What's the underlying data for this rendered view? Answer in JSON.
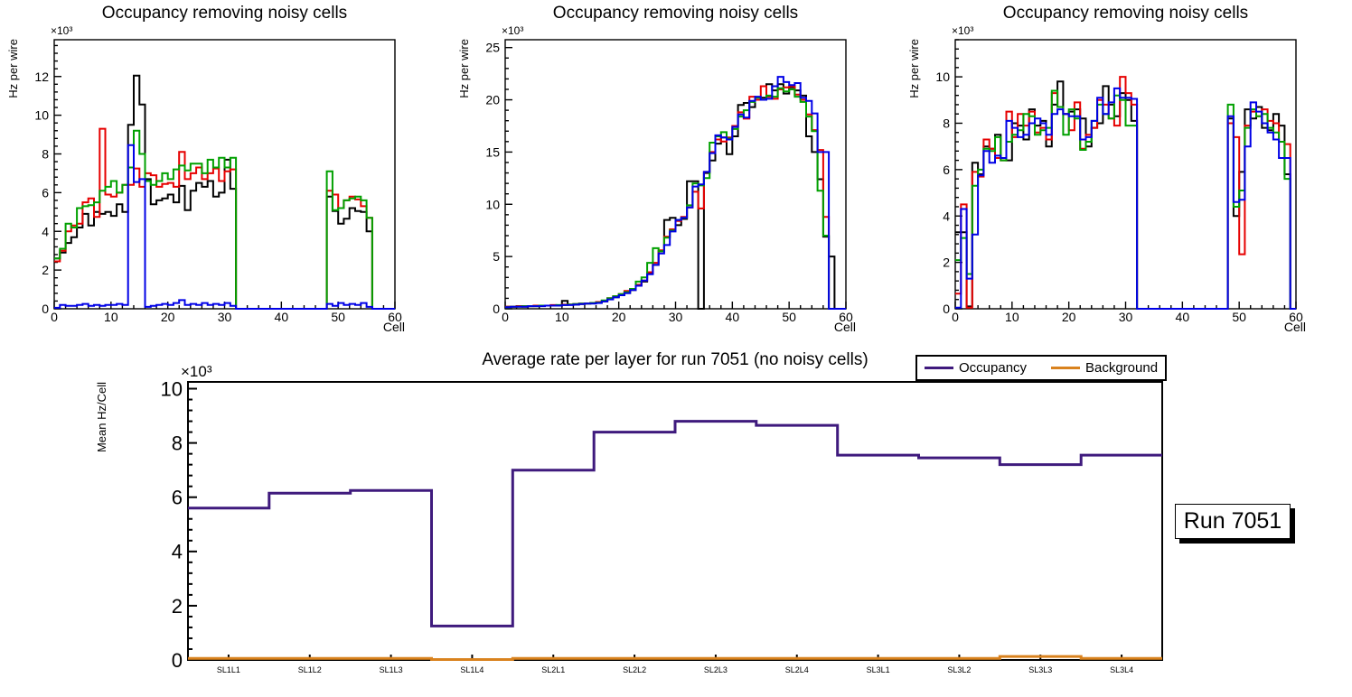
{
  "chart_data": [
    {
      "type": "bar",
      "render": "histogram-step-outline",
      "title": "Occupancy removing noisy cells",
      "xlabel": "Cell",
      "ylabel": "Hz per wire",
      "y_multiplier_label": "×10³",
      "xlim": [
        0,
        60
      ],
      "ylim": [
        0,
        13.9
      ],
      "xticks": [
        0,
        10,
        20,
        30,
        40,
        50,
        60
      ],
      "x_minor_step": 2,
      "yticks": [
        0,
        2,
        4,
        6,
        8,
        10,
        12
      ],
      "y_minor_step": 0.4,
      "grid": false,
      "series": [
        {
          "name": "black",
          "color": "#000000",
          "values": [
            2.6,
            2.9,
            3.4,
            3.7,
            4.2,
            4.9,
            4.3,
            5.0,
            4.9,
            5.0,
            4.8,
            5.4,
            5.0,
            9.5,
            12.05,
            10.55,
            6.7,
            5.4,
            5.6,
            5.7,
            5.9,
            5.5,
            6.35,
            5.1,
            6.1,
            6.5,
            6.3,
            6.6,
            5.8,
            6.0,
            7.7,
            6.2,
            0,
            0,
            0,
            0,
            0,
            0,
            0,
            0,
            0,
            0,
            0,
            0,
            0,
            0,
            0,
            0,
            5.8,
            5.05,
            4.4,
            4.65,
            5.2,
            5.05,
            5.0,
            4.0,
            0,
            0,
            0,
            0
          ]
        },
        {
          "name": "red",
          "color": "#e60000",
          "values": [
            2.45,
            3.0,
            4.0,
            4.3,
            4.4,
            5.5,
            5.7,
            4.75,
            9.3,
            5.9,
            5.8,
            6.0,
            6.4,
            6.4,
            7.25,
            6.3,
            7.0,
            6.9,
            6.3,
            6.45,
            6.5,
            6.3,
            8.1,
            6.7,
            7.0,
            7.3,
            6.7,
            7.0,
            7.25,
            6.6,
            7.1,
            7.2,
            0,
            0,
            0,
            0,
            0,
            0,
            0,
            0,
            0,
            0,
            0,
            0,
            0,
            0,
            0,
            0,
            6.1,
            5.9,
            5.2,
            5.6,
            5.8,
            5.65,
            5.3,
            4.7,
            0,
            0,
            0,
            0
          ]
        },
        {
          "name": "green",
          "color": "#00a000",
          "values": [
            2.6,
            3.1,
            4.4,
            4.2,
            5.2,
            5.3,
            5.35,
            5.5,
            6.1,
            6.3,
            6.6,
            6.0,
            6.4,
            7.3,
            9.2,
            8.0,
            6.6,
            6.4,
            6.6,
            7.0,
            6.7,
            7.2,
            7.4,
            7.15,
            7.5,
            7.5,
            7.0,
            7.7,
            7.3,
            7.8,
            7.3,
            7.8,
            0,
            0,
            0,
            0,
            0,
            0,
            0,
            0,
            0,
            0,
            0,
            0,
            0,
            0,
            0,
            0,
            7.1,
            5.1,
            5.2,
            5.6,
            5.7,
            5.8,
            5.6,
            4.7,
            0,
            0,
            0,
            0
          ]
        },
        {
          "name": "blue",
          "color": "#0000e6",
          "values": [
            0.05,
            0.2,
            0.15,
            0.15,
            0.2,
            0.25,
            0.15,
            0.2,
            0.15,
            0.2,
            0.2,
            0.25,
            0.2,
            8.45,
            6.55,
            6.7,
            0.1,
            0.15,
            0.2,
            0.25,
            0.2,
            0.3,
            0.45,
            0.2,
            0.25,
            0.2,
            0.3,
            0.2,
            0.25,
            0.2,
            0.3,
            0.15,
            0,
            0,
            0,
            0,
            0,
            0,
            0,
            0,
            0,
            0,
            0,
            0,
            0,
            0,
            0,
            0,
            0.25,
            0.15,
            0.3,
            0.2,
            0.25,
            0.2,
            0.3,
            0.1,
            0,
            0,
            0,
            0
          ]
        }
      ]
    },
    {
      "type": "bar",
      "render": "histogram-step-outline",
      "title": "Occupancy removing noisy cells",
      "xlabel": "Cell",
      "ylabel": "Hz per wire",
      "y_multiplier_label": "×10³",
      "xlim": [
        0,
        60
      ],
      "ylim": [
        0,
        25.75
      ],
      "xticks": [
        0,
        10,
        20,
        30,
        40,
        50,
        60
      ],
      "x_minor_step": 2,
      "yticks": [
        0,
        5,
        10,
        15,
        20,
        25
      ],
      "y_minor_step": 1,
      "grid": false,
      "series": [
        {
          "name": "black",
          "color": "#000000",
          "values": [
            0.2,
            0.2,
            0.25,
            0.2,
            0.25,
            0.25,
            0.3,
            0.3,
            0.3,
            0.3,
            0.75,
            0.4,
            0.4,
            0.45,
            0.5,
            0.55,
            0.6,
            0.7,
            1.0,
            1.1,
            1.3,
            1.5,
            1.8,
            2.2,
            2.6,
            3.4,
            4.2,
            5.5,
            8.5,
            8.7,
            8.0,
            8.6,
            12.2,
            12.2,
            0,
            13.0,
            14.2,
            15.8,
            16.4,
            14.8,
            16.5,
            19.5,
            19.7,
            19.3,
            20.0,
            20.2,
            21.5,
            20.9,
            21.5,
            20.6,
            21.2,
            20.9,
            20.4,
            16.5,
            15.0,
            12.4,
            6.9,
            5.0,
            0,
            0
          ]
        },
        {
          "name": "red",
          "color": "#e60000",
          "values": [
            0.2,
            0.2,
            0.25,
            0.25,
            0.25,
            0.3,
            0.3,
            0.3,
            0.35,
            0.3,
            0.4,
            0.4,
            0.45,
            0.5,
            0.5,
            0.55,
            0.65,
            0.75,
            1.0,
            1.2,
            1.4,
            1.7,
            1.9,
            2.3,
            2.7,
            3.5,
            4.4,
            5.6,
            6.9,
            7.6,
            8.4,
            8.8,
            9.7,
            11.2,
            9.6,
            13.1,
            15.0,
            16.2,
            16.0,
            16.4,
            17.5,
            18.8,
            18.2,
            20.3,
            20.0,
            21.3,
            20.3,
            20.1,
            21.0,
            21.2,
            21.3,
            20.5,
            20.0,
            18.6,
            17.1,
            15.2,
            8.8,
            0,
            0,
            0
          ]
        },
        {
          "name": "green",
          "color": "#00a000",
          "values": [
            0.15,
            0.2,
            0.2,
            0.25,
            0.25,
            0.25,
            0.3,
            0.3,
            0.3,
            0.35,
            0.35,
            0.4,
            0.45,
            0.5,
            0.5,
            0.55,
            0.6,
            0.8,
            1.0,
            1.2,
            1.4,
            1.6,
            1.9,
            2.6,
            3.0,
            4.4,
            5.8,
            5.5,
            6.8,
            7.5,
            8.5,
            8.7,
            9.9,
            12.0,
            11.8,
            12.5,
            15.9,
            16.5,
            16.9,
            16.3,
            17.2,
            18.4,
            19.0,
            19.8,
            20.2,
            20.0,
            20.4,
            20.3,
            21.1,
            20.8,
            21.0,
            20.3,
            19.8,
            18.4,
            17.0,
            11.3,
            7.0,
            0,
            0,
            0
          ]
        },
        {
          "name": "blue",
          "color": "#0000e6",
          "values": [
            0.15,
            0.2,
            0.2,
            0.2,
            0.25,
            0.25,
            0.25,
            0.3,
            0.3,
            0.3,
            0.35,
            0.35,
            0.4,
            0.45,
            0.5,
            0.5,
            0.55,
            0.7,
            0.9,
            1.1,
            1.3,
            1.5,
            1.8,
            2.2,
            2.7,
            3.3,
            4.2,
            5.3,
            6.1,
            7.4,
            8.5,
            8.7,
            9.7,
            11.7,
            11.9,
            13.1,
            14.9,
            16.6,
            16.4,
            16.2,
            17.4,
            18.6,
            18.3,
            19.9,
            20.3,
            20.0,
            20.1,
            21.3,
            22.2,
            21.7,
            21.4,
            21.6,
            20.2,
            19.9,
            18.7,
            15.0,
            15.0,
            0,
            0,
            0
          ]
        }
      ]
    },
    {
      "type": "bar",
      "render": "histogram-step-outline",
      "title": "Occupancy removing noisy cells",
      "xlabel": "Cell",
      "ylabel": "Hz per wire",
      "y_multiplier_label": "×10³",
      "xlim": [
        0,
        60
      ],
      "ylim": [
        0,
        11.6
      ],
      "xticks": [
        0,
        10,
        20,
        30,
        40,
        50,
        60
      ],
      "x_minor_step": 2,
      "yticks": [
        0,
        2,
        4,
        6,
        8,
        10
      ],
      "y_minor_step": 0.4,
      "grid": false,
      "series": [
        {
          "name": "black",
          "color": "#000000",
          "values": [
            3.3,
            3.3,
            0.1,
            6.3,
            5.8,
            7.0,
            6.9,
            7.5,
            6.5,
            6.4,
            8.0,
            7.9,
            7.3,
            8.6,
            7.9,
            8.1,
            7.0,
            8.8,
            9.8,
            8.4,
            8.5,
            8.6,
            8.2,
            7.0,
            7.8,
            8.0,
            9.6,
            8.8,
            8.3,
            9.3,
            9.0,
            8.1,
            0,
            0,
            0,
            0,
            0,
            0,
            0,
            0,
            0,
            0,
            0,
            0,
            0,
            0,
            0,
            0,
            8.2,
            4.0,
            5.9,
            8.6,
            8.2,
            8.7,
            7.8,
            7.7,
            8.4,
            7.9,
            5.8,
            0
          ]
        },
        {
          "name": "red",
          "color": "#e60000",
          "values": [
            0.65,
            4.5,
            0.05,
            5.9,
            5.7,
            7.3,
            6.9,
            6.5,
            6.4,
            8.5,
            7.4,
            8.4,
            7.9,
            8.5,
            7.6,
            7.8,
            7.3,
            9.3,
            8.7,
            8.4,
            7.7,
            8.9,
            6.9,
            7.5,
            7.8,
            9.0,
            8.8,
            8.2,
            7.9,
            10.0,
            9.3,
            8.8,
            0,
            0,
            0,
            0,
            0,
            0,
            0,
            0,
            0,
            0,
            0,
            0,
            0,
            0,
            0,
            0,
            8.0,
            7.4,
            2.35,
            7.9,
            8.5,
            8.3,
            8.6,
            8.1,
            8.0,
            7.2,
            7.1,
            0
          ]
        },
        {
          "name": "green",
          "color": "#00a000",
          "values": [
            2.1,
            3.05,
            1.5,
            5.3,
            6.0,
            6.9,
            6.8,
            7.4,
            6.4,
            7.2,
            7.5,
            7.7,
            8.4,
            8.3,
            7.5,
            7.7,
            7.8,
            9.4,
            8.7,
            7.5,
            8.6,
            8.2,
            6.85,
            7.2,
            8.1,
            8.8,
            8.4,
            8.2,
            9.2,
            9.0,
            7.9,
            7.9,
            0,
            0,
            0,
            0,
            0,
            0,
            0,
            0,
            0,
            0,
            0,
            0,
            0,
            0,
            0,
            0,
            8.8,
            4.4,
            5.1,
            7.8,
            8.6,
            8.3,
            8.4,
            7.8,
            7.6,
            7.2,
            5.6,
            0
          ]
        },
        {
          "name": "blue",
          "color": "#0000e6",
          "values": [
            0.05,
            4.3,
            1.3,
            3.2,
            5.75,
            6.8,
            6.3,
            6.6,
            6.5,
            8.1,
            7.8,
            7.4,
            7.5,
            8.0,
            8.2,
            8.0,
            7.5,
            8.4,
            8.6,
            8.4,
            8.3,
            8.3,
            7.3,
            7.4,
            8.1,
            9.1,
            8.4,
            8.9,
            9.5,
            9.1,
            9.1,
            9.05,
            0,
            0,
            0,
            0,
            0,
            0,
            0,
            0,
            0,
            0,
            0,
            0,
            0,
            0,
            0,
            0,
            8.3,
            4.6,
            4.7,
            7.0,
            8.9,
            8.5,
            8.0,
            7.6,
            7.3,
            6.5,
            6.5,
            0
          ]
        }
      ]
    },
    {
      "type": "line",
      "render": "category-step",
      "title": "Average rate per layer for run 7051 (no noisy cells)",
      "xlabel": "",
      "ylabel": "Mean Hz/Cell",
      "y_multiplier_label": "×10³",
      "categories": [
        "SL1L1",
        "SL1L2",
        "SL1L3",
        "SL1L4",
        "SL2L1",
        "SL2L2",
        "SL2L3",
        "SL2L4",
        "SL3L1",
        "SL3L2",
        "SL3L3",
        "SL3L4"
      ],
      "ylim": [
        0,
        10.25
      ],
      "yticks": [
        0,
        2,
        4,
        6,
        8,
        10
      ],
      "y_minor_step": 0.4,
      "grid": false,
      "legend_position": "top-right",
      "series": [
        {
          "name": "Occupancy",
          "color": "#3f1a7d",
          "values": [
            5.6,
            6.15,
            6.25,
            1.25,
            7.0,
            8.4,
            8.8,
            8.65,
            7.55,
            7.45,
            7.2,
            7.55
          ]
        },
        {
          "name": "Background",
          "color": "#d9821e",
          "values": [
            0.06,
            0.06,
            0.06,
            0.015,
            0.06,
            0.06,
            0.06,
            0.06,
            0.06,
            0.06,
            0.13,
            0.06
          ]
        }
      ]
    }
  ],
  "legend": {
    "entries": [
      {
        "label": "Occupancy",
        "color": "#3f1a7d"
      },
      {
        "label": "Background",
        "color": "#d9821e"
      }
    ]
  },
  "run_label": {
    "text": "Run 7051"
  }
}
